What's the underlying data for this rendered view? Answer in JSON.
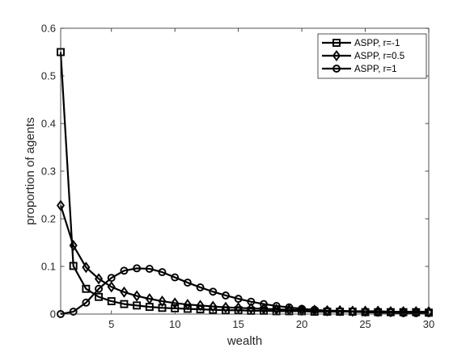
{
  "chart_data": {
    "type": "line",
    "title": "",
    "xlabel": "wealth",
    "ylabel": "proportion of agents",
    "xlim": [
      1,
      30
    ],
    "ylim": [
      0,
      0.6
    ],
    "xticks": [
      5,
      10,
      15,
      20,
      25,
      30
    ],
    "yticks": [
      0,
      0.1,
      0.2,
      0.3,
      0.4,
      0.5,
      0.6
    ],
    "grid": false,
    "legend_position": "top-right",
    "x": [
      1,
      2,
      3,
      4,
      5,
      6,
      7,
      8,
      9,
      10,
      11,
      12,
      13,
      14,
      15,
      16,
      17,
      18,
      19,
      20,
      21,
      22,
      23,
      24,
      25,
      26,
      27,
      28,
      29,
      30
    ],
    "series": [
      {
        "name": "ASPP, r=-1",
        "marker": "square",
        "color": "#000000",
        "values": [
          0.55,
          0.101,
          0.053,
          0.036,
          0.027,
          0.021,
          0.018,
          0.015,
          0.013,
          0.012,
          0.011,
          0.01,
          0.009,
          0.008,
          0.008,
          0.007,
          0.007,
          0.006,
          0.006,
          0.006,
          0.005,
          0.005,
          0.005,
          0.005,
          0.004,
          0.004,
          0.004,
          0.004,
          0.004,
          0.003
        ]
      },
      {
        "name": "ASPP, r=0.5",
        "marker": "diamond",
        "color": "#000000",
        "values": [
          0.228,
          0.144,
          0.098,
          0.074,
          0.057,
          0.046,
          0.038,
          0.032,
          0.027,
          0.023,
          0.02,
          0.018,
          0.016,
          0.014,
          0.013,
          0.012,
          0.011,
          0.01,
          0.009,
          0.008,
          0.008,
          0.007,
          0.007,
          0.006,
          0.006,
          0.006,
          0.005,
          0.005,
          0.005,
          0.005
        ]
      },
      {
        "name": "ASPP, r=1",
        "marker": "circle",
        "color": "#000000",
        "values": [
          0.0,
          0.005,
          0.024,
          0.053,
          0.076,
          0.091,
          0.096,
          0.095,
          0.088,
          0.077,
          0.066,
          0.056,
          0.047,
          0.039,
          0.032,
          0.026,
          0.021,
          0.017,
          0.014,
          0.011,
          0.009,
          0.007,
          0.006,
          0.005,
          0.004,
          0.003,
          0.003,
          0.002,
          0.002,
          0.002
        ]
      }
    ]
  }
}
